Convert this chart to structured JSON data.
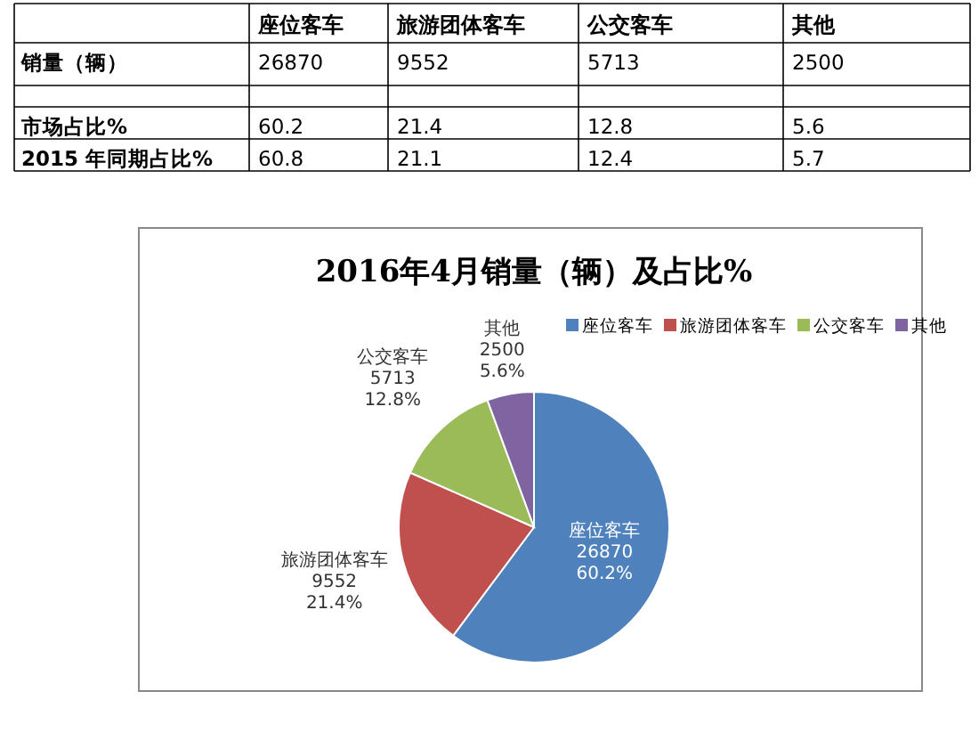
{
  "chart_data": [
    {
      "type": "other",
      "data_labels": true,
      "categories": [
        "座位客车",
        "旅游团体客车",
        "公交客车",
        "其他"
      ],
      "series": [
        {
          "name": "销量（辆）",
          "values": [
            26870,
            9552,
            5713,
            2500
          ]
        },
        {
          "name": "市场占比%",
          "values": [
            60.2,
            21.4,
            12.8,
            5.6
          ]
        },
        {
          "name": "2015 年同期占比%",
          "values": [
            60.8,
            21.1,
            12.4,
            5.7
          ]
        }
      ]
    },
    {
      "type": "pie",
      "title": "2016年4月销量（辆）及占比%",
      "categories": [
        "座位客车",
        "旅游团体客车",
        "公交客车",
        "其他"
      ],
      "values": [
        26870,
        9552,
        5713,
        2500
      ],
      "colors": [
        "#4f81bd",
        "#c0504d",
        "#9bbb59",
        "#8064a2"
      ],
      "value_labels": [
        "26870\n60.2%",
        "9552\n21.4%",
        "5713\n12.8%",
        "2500\n5.6%"
      ],
      "legend": "top right"
    }
  ]
}
